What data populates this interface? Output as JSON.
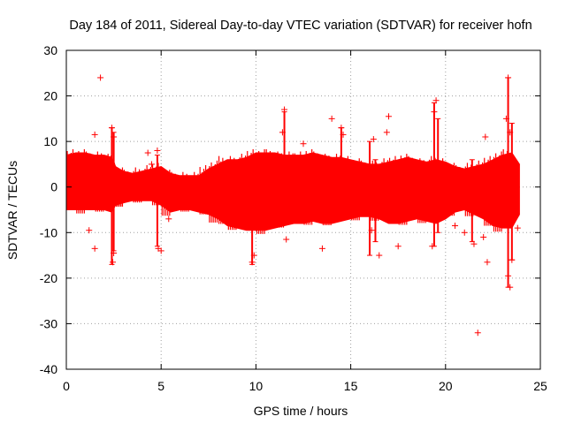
{
  "chart_data": {
    "type": "scatter",
    "title": "Day 184 of 2011, Sidereal Day-to-day VTEC variation (SDTVAR) for receiver hofn",
    "xlabel": "GPS time / hours",
    "ylabel": "SDTVAR / TECUs",
    "xlim": [
      0,
      25
    ],
    "ylim": [
      -40,
      30
    ],
    "xticks": [
      0,
      5,
      10,
      15,
      20,
      25
    ],
    "xtick_labels": [
      "0",
      "5",
      "10",
      "15",
      "20",
      "25"
    ],
    "yticks": [
      -40,
      -30,
      -20,
      -10,
      0,
      10,
      20,
      30
    ],
    "ytick_labels": [
      "-40",
      "-30",
      "-20",
      "-10",
      "0",
      "10",
      "20",
      "30"
    ],
    "grid": true,
    "marker": "+",
    "series": [
      {
        "name": "SDTVAR",
        "color": "#ff0000",
        "band": {
          "x": [
            0.0,
            0.5,
            1.0,
            1.5,
            2.0,
            2.4,
            2.6,
            3.0,
            3.5,
            4.0,
            4.5,
            5.0,
            5.5,
            6.0,
            6.5,
            7.0,
            7.5,
            8.0,
            8.5,
            9.0,
            9.5,
            10.0,
            10.5,
            11.0,
            11.5,
            12.0,
            12.5,
            13.0,
            13.5,
            14.0,
            14.5,
            15.0,
            15.5,
            16.0,
            16.5,
            17.0,
            17.5,
            18.0,
            18.5,
            19.0,
            19.5,
            20.0,
            20.5,
            21.0,
            21.5,
            22.0,
            22.5,
            23.0,
            23.5,
            23.9
          ],
          "upper": [
            7.0,
            7.5,
            7.5,
            7.0,
            7.0,
            6.5,
            4.5,
            3.5,
            3.0,
            3.5,
            4.0,
            4.5,
            3.0,
            2.5,
            2.5,
            2.5,
            4.0,
            5.0,
            6.0,
            6.0,
            6.5,
            7.5,
            7.5,
            7.5,
            7.0,
            7.0,
            7.0,
            7.5,
            7.0,
            6.5,
            6.5,
            6.0,
            5.5,
            5.0,
            5.0,
            5.5,
            6.0,
            6.5,
            6.0,
            5.5,
            6.0,
            5.5,
            4.5,
            4.0,
            4.5,
            5.0,
            6.0,
            7.0,
            7.5,
            5.0
          ],
          "lower": [
            -5.0,
            -5.0,
            -5.0,
            -5.0,
            -5.0,
            -5.5,
            -4.0,
            -3.5,
            -3.0,
            -3.0,
            -3.0,
            -4.0,
            -5.5,
            -5.0,
            -5.0,
            -5.5,
            -6.0,
            -7.0,
            -8.5,
            -9.0,
            -9.5,
            -9.5,
            -9.5,
            -9.0,
            -8.5,
            -8.0,
            -8.0,
            -7.5,
            -8.0,
            -8.0,
            -7.5,
            -7.0,
            -6.5,
            -6.5,
            -7.0,
            -8.0,
            -8.0,
            -7.5,
            -7.0,
            -7.5,
            -8.0,
            -7.0,
            -5.5,
            -5.0,
            -6.0,
            -7.0,
            -8.5,
            -9.0,
            -9.0,
            -6.0
          ]
        },
        "points": [
          {
            "x": 1.8,
            "y": 24.0
          },
          {
            "x": 1.5,
            "y": 11.5
          },
          {
            "x": 2.4,
            "y": 13.0
          },
          {
            "x": 2.5,
            "y": 11.0
          },
          {
            "x": 2.45,
            "y": -16.5
          },
          {
            "x": 2.5,
            "y": -14.5
          },
          {
            "x": 1.5,
            "y": -13.5
          },
          {
            "x": 1.2,
            "y": -9.5
          },
          {
            "x": 4.3,
            "y": 7.5
          },
          {
            "x": 4.8,
            "y": 8.0
          },
          {
            "x": 4.5,
            "y": 5.0
          },
          {
            "x": 4.85,
            "y": -13.5
          },
          {
            "x": 5.0,
            "y": -14.0
          },
          {
            "x": 5.4,
            "y": -7.0
          },
          {
            "x": 9.8,
            "y": -16.5
          },
          {
            "x": 9.9,
            "y": -15.0
          },
          {
            "x": 11.5,
            "y": 17.0
          },
          {
            "x": 11.6,
            "y": -11.5
          },
          {
            "x": 11.4,
            "y": 12.0
          },
          {
            "x": 12.5,
            "y": 9.5
          },
          {
            "x": 13.5,
            "y": -13.5
          },
          {
            "x": 14.0,
            "y": 15.0
          },
          {
            "x": 14.5,
            "y": 13.0
          },
          {
            "x": 14.6,
            "y": 11.5
          },
          {
            "x": 15.2,
            "y": 5.0
          },
          {
            "x": 16.2,
            "y": 10.5
          },
          {
            "x": 16.1,
            "y": -9.5
          },
          {
            "x": 16.5,
            "y": -15.0
          },
          {
            "x": 17.0,
            "y": 15.5
          },
          {
            "x": 16.9,
            "y": 12.0
          },
          {
            "x": 17.5,
            "y": -13.0
          },
          {
            "x": 19.5,
            "y": 19.0
          },
          {
            "x": 19.4,
            "y": 16.5
          },
          {
            "x": 19.3,
            "y": -13.0
          },
          {
            "x": 20.5,
            "y": -8.5
          },
          {
            "x": 21.0,
            "y": -10.0
          },
          {
            "x": 21.5,
            "y": -12.5
          },
          {
            "x": 21.7,
            "y": -32.0
          },
          {
            "x": 22.1,
            "y": 11.0
          },
          {
            "x": 22.2,
            "y": -16.5
          },
          {
            "x": 22.0,
            "y": -11.0
          },
          {
            "x": 23.3,
            "y": 24.0
          },
          {
            "x": 23.2,
            "y": 15.0
          },
          {
            "x": 23.4,
            "y": 12.0
          },
          {
            "x": 23.4,
            "y": -22.0
          },
          {
            "x": 23.3,
            "y": -19.5
          },
          {
            "x": 23.5,
            "y": -16.0
          },
          {
            "x": 23.8,
            "y": -9.0
          }
        ],
        "spikes": [
          {
            "x": 2.4,
            "min": -17.0,
            "max": 13.0
          },
          {
            "x": 2.5,
            "min": -14.0,
            "max": 12.0
          },
          {
            "x": 4.8,
            "min": -13.0,
            "max": 7.0
          },
          {
            "x": 9.8,
            "min": -17.0,
            "max": 6.0
          },
          {
            "x": 11.5,
            "min": -8.0,
            "max": 16.5
          },
          {
            "x": 14.5,
            "min": -6.0,
            "max": 13.0
          },
          {
            "x": 16.0,
            "min": -15.0,
            "max": 10.0
          },
          {
            "x": 16.3,
            "min": -12.0,
            "max": 6.0
          },
          {
            "x": 19.4,
            "min": -13.0,
            "max": 18.5
          },
          {
            "x": 19.6,
            "min": -10.0,
            "max": 15.0
          },
          {
            "x": 21.4,
            "min": -12.0,
            "max": 6.0
          },
          {
            "x": 23.3,
            "min": -22.0,
            "max": 24.0
          },
          {
            "x": 23.5,
            "min": -16.0,
            "max": 14.0
          }
        ]
      }
    ]
  }
}
